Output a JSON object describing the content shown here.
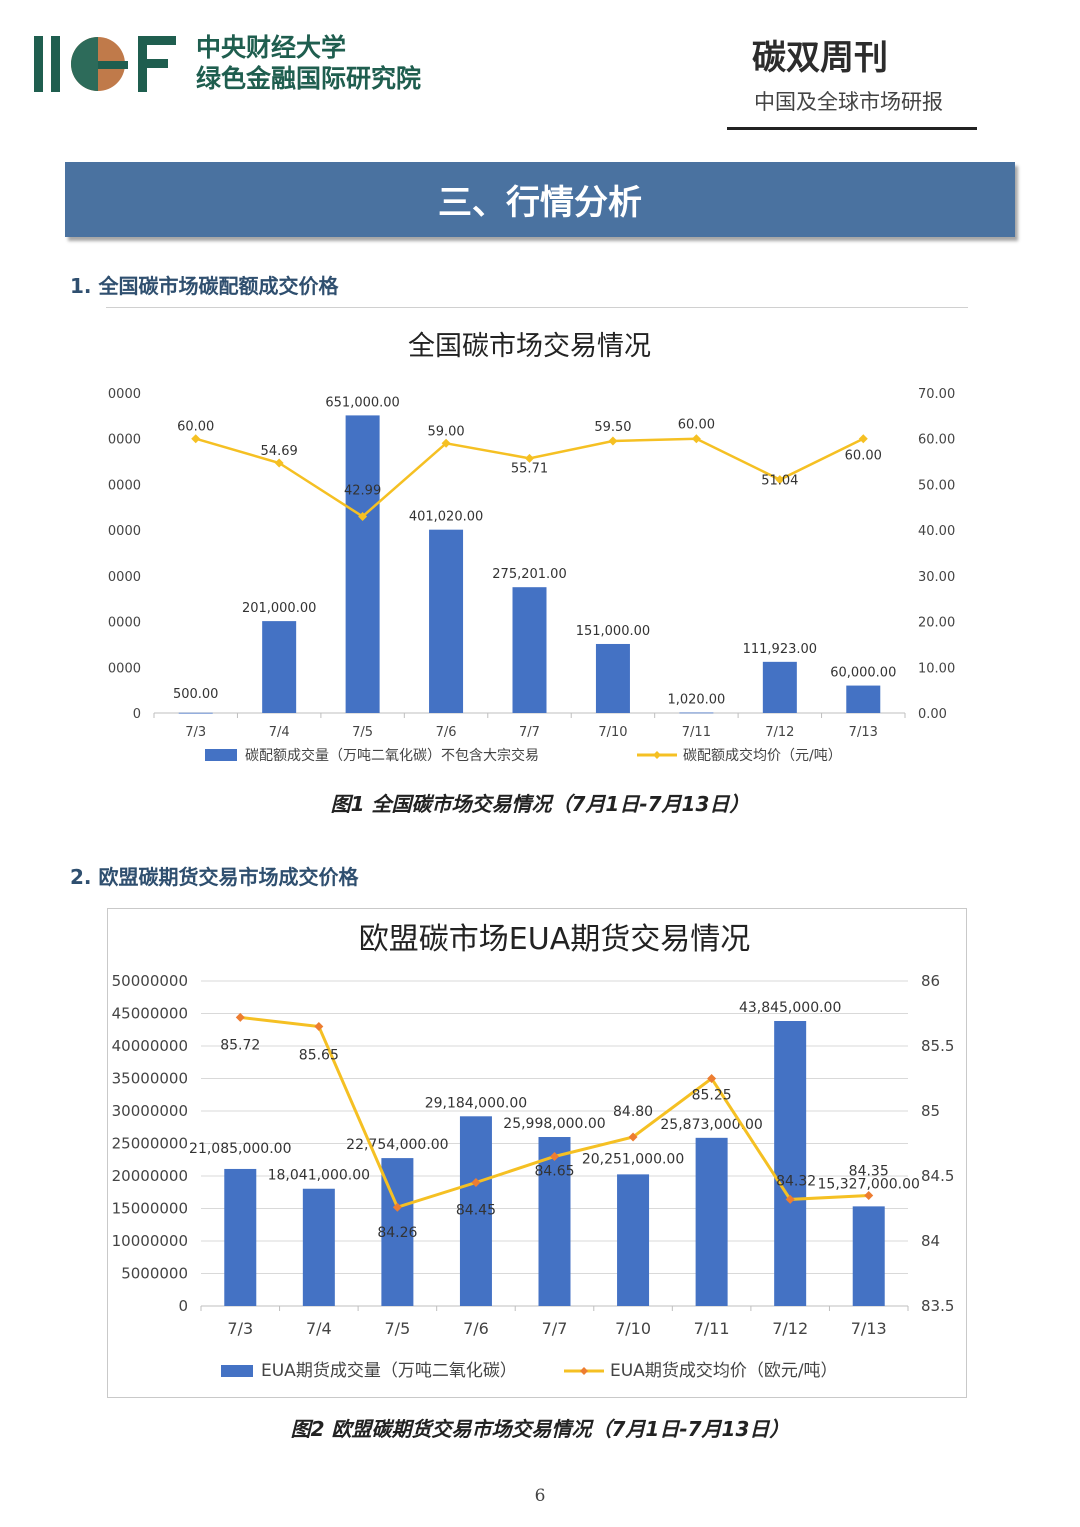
{
  "header": {
    "org_line1": "中央财经大学",
    "org_line2": "绿色金融国际研究院",
    "logo_text": "IIGF",
    "weekly_title": "碳双周刊",
    "weekly_subtitle": "中国及全球市场研报"
  },
  "section_banner": "三、行情分析",
  "sections": [
    {
      "heading": "1. 全国碳市场碳配额成交价格",
      "caption": "图1 全国碳市场交易情况（7月1日-7月13日）"
    },
    {
      "heading": "2. 欧盟碳期货交易市场成交价格",
      "caption": "图2 欧盟碳期货交易市场交易情况（7月1日-7月13日）"
    }
  ],
  "page_number": "6",
  "colors": {
    "bar": "#4472c4",
    "line": "#f5c023",
    "marker2": "#ed7d31",
    "banner": "#4a72a0",
    "org_green": "#1f5e4f"
  },
  "chart_data": [
    {
      "type": "bar",
      "title": "全国碳市场交易情况",
      "categories": [
        "7/3",
        "7/4",
        "7/5",
        "7/6",
        "7/7",
        "7/10",
        "7/11",
        "7/12",
        "7/13"
      ],
      "y_left_ticks": [
        "0",
        "0000",
        "0000",
        "0000",
        "0000",
        "0000",
        "0000",
        "0000"
      ],
      "y_left_range": [
        0,
        700000
      ],
      "y_right_ticks": [
        "0.00",
        "10.00",
        "20.00",
        "30.00",
        "40.00",
        "50.00",
        "60.00",
        "70.00"
      ],
      "y_right_range": [
        0,
        70
      ],
      "series": [
        {
          "name": "碳配额成交量（万吨二氧化碳）不包含大宗交易",
          "type": "bar",
          "values": [
            500,
            201000,
            651000,
            401020,
            275201,
            151000,
            1020,
            111923,
            60000
          ],
          "labels": [
            "500.00",
            "201,000.00",
            "651,000.00",
            "401,020.00",
            "275,201.00",
            "151,000.00",
            "1,020.00",
            "111,923.00",
            "60,000.00"
          ]
        },
        {
          "name": "碳配额成交均价（元/吨）",
          "type": "line",
          "values": [
            60.0,
            54.69,
            42.99,
            59.0,
            55.71,
            59.5,
            60.0,
            51.04,
            60.0
          ],
          "labels": [
            "60.00",
            "54.69",
            "42.99",
            "59.00",
            "55.71",
            "59.50",
            "60.00",
            "51.04",
            "60.00"
          ]
        }
      ],
      "legend": "bottom",
      "grid": true
    },
    {
      "type": "bar",
      "title": "欧盟碳市场EUA期货交易情况",
      "categories": [
        "7/3",
        "7/4",
        "7/5",
        "7/6",
        "7/7",
        "7/10",
        "7/11",
        "7/12",
        "7/13"
      ],
      "y_left_ticks": [
        "0",
        "5000000",
        "10000000",
        "15000000",
        "20000000",
        "25000000",
        "30000000",
        "35000000",
        "40000000",
        "45000000",
        "50000000"
      ],
      "y_left_range": [
        0,
        50000000
      ],
      "y_right_ticks": [
        "83.5",
        "84",
        "84.5",
        "85",
        "85.5",
        "86"
      ],
      "y_right_range": [
        83.5,
        86
      ],
      "series": [
        {
          "name": "EUA期货成交量（万吨二氧化碳）",
          "type": "bar",
          "values": [
            21085000,
            18041000,
            22754000,
            29184000,
            25998000,
            20251000,
            25873000,
            43845000,
            15327000
          ],
          "labels": [
            "21,085,000.00",
            "18,041,000.00",
            "22,754,000.00",
            "29,184,000.00",
            "25,998,000.00",
            "20,251,000.00",
            "25,873,000.00",
            "43,845,000.00",
            "15,327,000.00"
          ]
        },
        {
          "name": "EUA期货成交均价（欧元/吨）",
          "type": "line",
          "values": [
            85.72,
            85.65,
            84.26,
            84.45,
            84.65,
            84.8,
            85.25,
            84.32,
            84.35
          ],
          "labels": [
            "85.72",
            "85.65",
            "84.26",
            "84.45",
            "84.65",
            "84.80",
            "85.25",
            "84.32",
            "84.35"
          ]
        }
      ],
      "legend": "bottom",
      "grid": true
    }
  ]
}
